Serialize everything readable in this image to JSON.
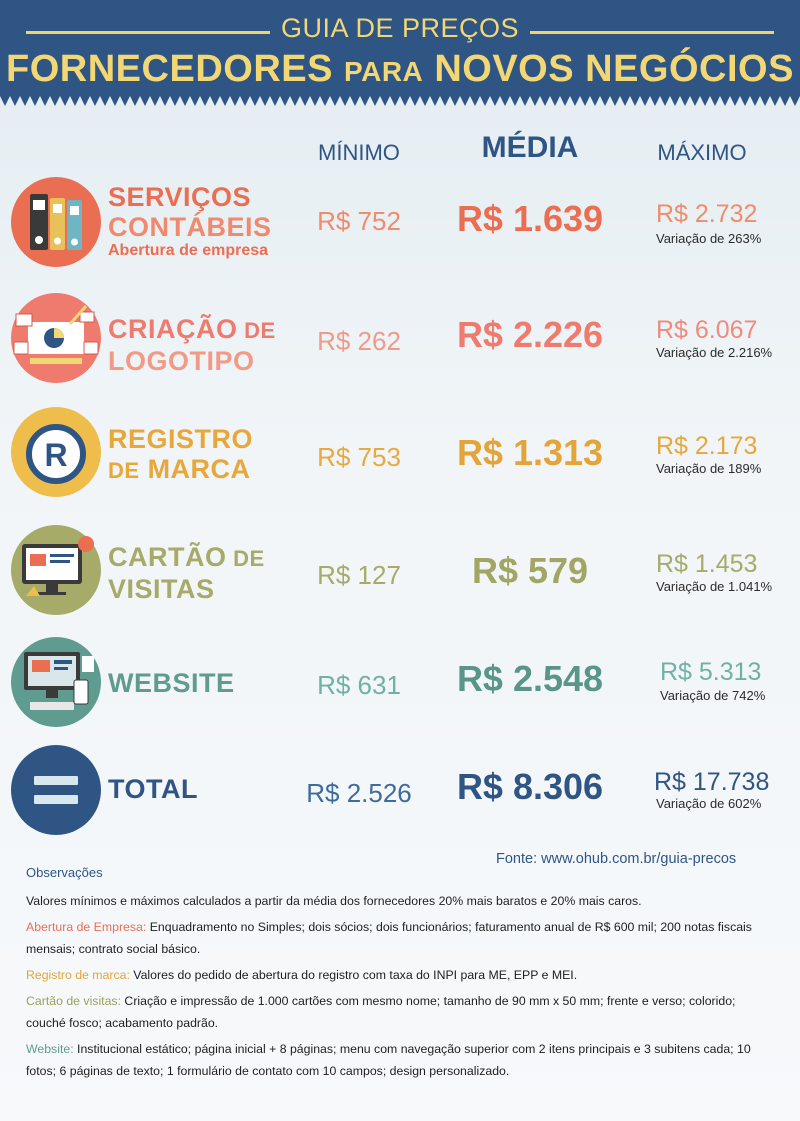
{
  "header": {
    "title_top": "GUIA DE PREÇOS",
    "title_main_part1": "FORNECEDORES ",
    "title_main_small": "PARA",
    "title_main_part2": " NOVOS NEGÓCIOS",
    "bg_color": "#2f5585",
    "text_color": "#f2d774"
  },
  "columns": {
    "min": "MÍNIMO",
    "mid": "MÉDIA",
    "max": "MÁXIMO"
  },
  "rows": [
    {
      "name_line1": "SERVIÇOS",
      "name_line2": "CONTÁBEIS",
      "name_sub": "Abertura de empresa",
      "min": "R$ 752",
      "mid": "R$ 1.639",
      "max": "R$ 2.732",
      "variation": "Variação de 263%",
      "color": "#ea6e52",
      "icon": "binders-icon"
    },
    {
      "name_line1a": "CRIAÇÃO",
      "name_line1b": " DE",
      "name_line2": "LOGOTIPO",
      "min": "R$ 262",
      "mid": "R$ 2.226",
      "max": "R$ 6.067",
      "variation": "Variação de 2.216%",
      "color": "#ee7b6e",
      "icon": "logo-design-icon"
    },
    {
      "name_line1": "REGISTRO",
      "name_line2a": "DE",
      "name_line2b": " MARCA",
      "min": "R$ 753",
      "mid": "R$ 1.313",
      "max": "R$ 2.173",
      "variation": "Variação de 189%",
      "color": "#e8a73a",
      "icon": "registered-trademark-icon"
    },
    {
      "name_line1a": "CARTÃO",
      "name_line1b": " DE",
      "name_line2": "VISITAS",
      "min": "R$ 127",
      "mid": "R$ 579",
      "max": "R$ 1.453",
      "variation": "Variação de 1.041%",
      "color": "#a6ab6a",
      "icon": "business-card-icon"
    },
    {
      "name_line1": "WEBSITE",
      "min": "R$ 631",
      "mid": "R$ 2.548",
      "max": "R$ 5.313",
      "variation": "Variação de 742%",
      "color": "#5f9b8f",
      "icon": "website-icon"
    },
    {
      "name_line1": "TOTAL",
      "min": "R$ 2.526",
      "mid": "R$ 8.306",
      "max": "R$ 17.738",
      "variation": "Variação de 602%",
      "color": "#2f5585",
      "icon": "equals-icon"
    }
  ],
  "footer": {
    "source": "Fonte: www.ohub.com.br/guia-precos",
    "obs_title": "Observações",
    "note_general": "Valores mínimos e máximos calculados a partir da média dos fornecedores 20% mais baratos e 20% mais caros.",
    "note1_key": "Abertura de Empresa:",
    "note1_text": " Enquadramento no Simples; dois sócios; dois funcionários; faturamento anual de R$ 600 mil; 200 notas fiscais mensais; contrato social básico.",
    "note2_key": "Registro de marca:",
    "note2_text": " Valores do pedido de abertura do registro com taxa do INPI para ME, EPP e MEI.",
    "note3_key": "Cartão de visitas:",
    "note3_text": " Criação e impressão de 1.000 cartões com mesmo nome; tamanho de 90 mm x 50 mm; frente e verso; colorido; couché fosco; acabamento padrão.",
    "note4_key": "Website:",
    "note4_text": " Institucional estático; página inicial + 8 páginas; menu com navegação superior com 2 itens principais e 3 subitens cada; 10 fotos; 6 páginas de texto; 1 formulário de contato com 10 campos; design personalizado."
  }
}
